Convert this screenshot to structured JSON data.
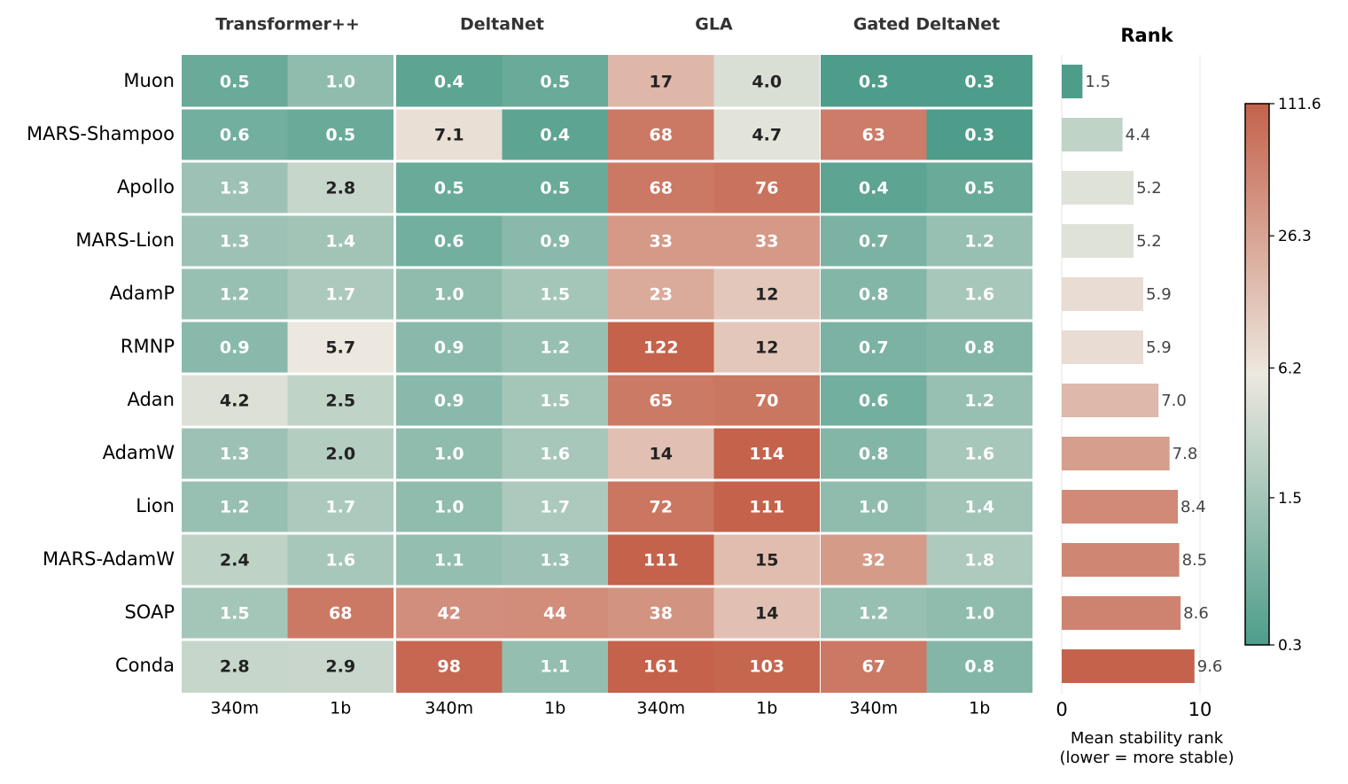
{
  "chart_data": [
    {
      "type": "heatmap",
      "column_groups": [
        "Transformer++",
        "DeltaNet",
        "GLA",
        "Gated DeltaNet"
      ],
      "column_sizes": [
        "340m",
        "1b"
      ],
      "rows": [
        "Muon",
        "MARS-Shampoo",
        "Apollo",
        "MARS-Lion",
        "AdamP",
        "RMNP",
        "Adan",
        "AdamW",
        "Lion",
        "MARS-AdamW",
        "SOAP",
        "Conda"
      ],
      "values": [
        [
          0.5,
          1.0,
          0.4,
          0.5,
          17,
          4.0,
          0.3,
          0.3
        ],
        [
          0.6,
          0.5,
          7.1,
          0.4,
          68,
          4.7,
          63,
          0.3
        ],
        [
          1.3,
          2.8,
          0.5,
          0.5,
          68,
          76,
          0.4,
          0.5
        ],
        [
          1.3,
          1.4,
          0.6,
          0.9,
          33,
          33,
          0.7,
          1.2
        ],
        [
          1.2,
          1.7,
          1.0,
          1.5,
          23,
          12,
          0.8,
          1.6
        ],
        [
          0.9,
          5.7,
          0.9,
          1.2,
          122,
          12,
          0.7,
          0.8
        ],
        [
          4.2,
          2.5,
          0.9,
          1.5,
          65,
          70,
          0.6,
          1.2
        ],
        [
          1.3,
          2.0,
          1.0,
          1.6,
          14,
          114,
          0.8,
          1.6
        ],
        [
          1.2,
          1.7,
          1.0,
          1.7,
          72,
          111,
          1.0,
          1.4
        ],
        [
          2.4,
          1.6,
          1.1,
          1.3,
          111,
          15,
          32,
          1.8
        ],
        [
          1.5,
          68,
          42,
          44,
          38,
          14,
          1.2,
          1.0
        ],
        [
          2.8,
          2.9,
          98,
          1.1,
          161,
          103,
          67,
          0.8
        ]
      ],
      "labels": [
        [
          "0.5",
          "1.0",
          "0.4",
          "0.5",
          "17",
          "4.0",
          "0.3",
          "0.3"
        ],
        [
          "0.6",
          "0.5",
          "7.1",
          "0.4",
          "68",
          "4.7",
          "63",
          "0.3"
        ],
        [
          "1.3",
          "2.8",
          "0.5",
          "0.5",
          "68",
          "76",
          "0.4",
          "0.5"
        ],
        [
          "1.3",
          "1.4",
          "0.6",
          "0.9",
          "33",
          "33",
          "0.7",
          "1.2"
        ],
        [
          "1.2",
          "1.7",
          "1.0",
          "1.5",
          "23",
          "12",
          "0.8",
          "1.6"
        ],
        [
          "0.9",
          "5.7",
          "0.9",
          "1.2",
          "122",
          "12",
          "0.7",
          "0.8"
        ],
        [
          "4.2",
          "2.5",
          "0.9",
          "1.5",
          "65",
          "70",
          "0.6",
          "1.2"
        ],
        [
          "1.3",
          "2.0",
          "1.0",
          "1.6",
          "14",
          "114",
          "0.8",
          "1.6"
        ],
        [
          "1.2",
          "1.7",
          "1.0",
          "1.7",
          "72",
          "111",
          "1.0",
          "1.4"
        ],
        [
          "2.4",
          "1.6",
          "1.1",
          "1.3",
          "111",
          "15",
          "32",
          "1.8"
        ],
        [
          "1.5",
          "68",
          "42",
          "44",
          "38",
          "14",
          "1.2",
          "1.0"
        ],
        [
          "2.8",
          "2.9",
          "98",
          "1.1",
          "161",
          "103",
          "67",
          "0.8"
        ]
      ],
      "colorbar": {
        "scale": "log",
        "vmin": 0.3,
        "vmax": 111.6,
        "ticks": [
          "111.6",
          "26.3",
          "6.2",
          "1.5",
          "0.3"
        ],
        "colors": [
          "#4e9d8b",
          "#ede8df",
          "#c4624b"
        ]
      }
    },
    {
      "type": "bar",
      "orientation": "horizontal",
      "title": "Rank",
      "categories": [
        "Muon",
        "MARS-Shampoo",
        "Apollo",
        "MARS-Lion",
        "AdamP",
        "RMNP",
        "Adan",
        "AdamW",
        "Lion",
        "MARS-AdamW",
        "SOAP",
        "Conda"
      ],
      "values": [
        1.5,
        4.4,
        5.2,
        5.2,
        5.9,
        5.9,
        7.0,
        7.8,
        8.4,
        8.5,
        8.6,
        9.6
      ],
      "value_labels": [
        "1.5",
        "4.4",
        "5.2",
        "5.2",
        "5.9",
        "5.9",
        "7.0",
        "7.8",
        "8.4",
        "8.5",
        "8.6",
        "9.6"
      ],
      "xlim": [
        0,
        10
      ],
      "xticks": [
        "0",
        "10"
      ],
      "xlabel_lines": [
        "Mean stability rank",
        "(lower = more stable)"
      ]
    }
  ]
}
